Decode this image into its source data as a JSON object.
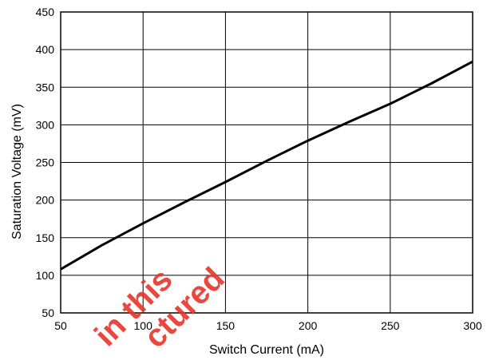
{
  "chart_data": {
    "type": "line",
    "title": "",
    "xlabel": "Switch Current (mA)",
    "ylabel": "Saturation Voltage (mV)",
    "xlim": [
      50,
      300
    ],
    "ylim": [
      50,
      450
    ],
    "xticks": [
      50,
      100,
      150,
      200,
      250,
      300
    ],
    "yticks": [
      50,
      100,
      150,
      200,
      250,
      300,
      350,
      400,
      450
    ],
    "grid": true,
    "legend": "none",
    "line_color": "#000000",
    "series": [
      {
        "x": [
          50,
          75,
          100,
          125,
          150,
          175,
          200,
          225,
          250,
          275,
          300
        ],
        "values": [
          108,
          140,
          169,
          197,
          224,
          252,
          279,
          304,
          328,
          355,
          384
        ]
      }
    ]
  },
  "watermark": {
    "text": "in this",
    "text2": "ctured",
    "color": "#e8352b"
  }
}
